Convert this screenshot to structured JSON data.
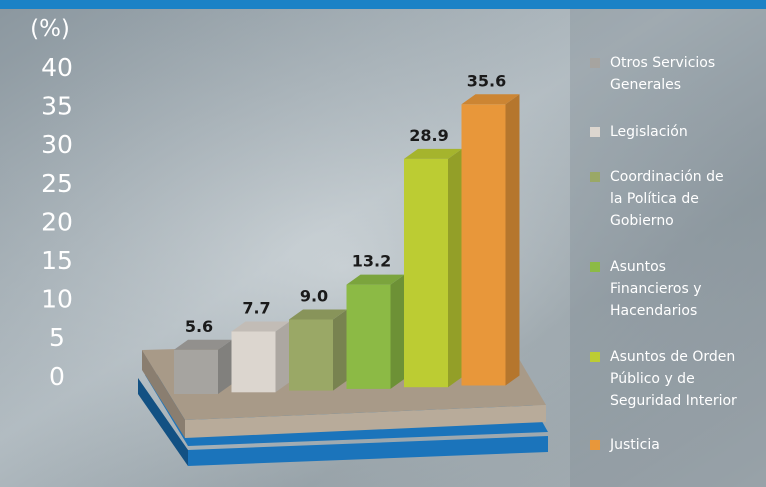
{
  "chart_data": {
    "type": "bar",
    "ylabel": "(%)",
    "ylim": [
      0,
      40
    ],
    "y_ticks": [
      "40",
      "35",
      "30",
      "25",
      "20",
      "15",
      "10",
      "5",
      "0"
    ],
    "categories": [
      "Otros Servicios Generales",
      "Legislación",
      "Coordinación de la Política de Gobierno",
      "Asuntos Financieros y Hacendarios",
      "Asuntos de Orden Público y de Seguridad Interior",
      "Justicia"
    ],
    "values": [
      5.6,
      7.7,
      9.0,
      13.2,
      28.9,
      35.6
    ],
    "value_labels": [
      "5.6",
      "7.7",
      "9.0",
      "13.2",
      "28.9",
      "35.6"
    ],
    "legend_position": "right",
    "three_d": true
  },
  "legend": {
    "items": [
      {
        "lines": [
          "Otros Servicios",
          "Generales"
        ],
        "color": "#a6a4a0"
      },
      {
        "lines": [
          "Legislación"
        ],
        "color": "#dcd6cf"
      },
      {
        "lines": [
          "Coordinación de",
          "la Política de",
          "Gobierno"
        ],
        "color": "#9aa866"
      },
      {
        "lines": [
          "Asuntos",
          "Financieros y",
          "Hacendarios"
        ],
        "color": "#8cba45"
      },
      {
        "lines": [
          "Asuntos de Orden",
          "Público y de",
          "Seguridad Interior"
        ],
        "color": "#bccc33"
      },
      {
        "lines": [
          "Justicia"
        ],
        "color": "#e8973a"
      }
    ]
  },
  "colors": {
    "top_bar": "#1b82c6",
    "base_top": "#a89a88",
    "base_front": "#b8ab9a",
    "base_blue": "#1b74bb"
  }
}
